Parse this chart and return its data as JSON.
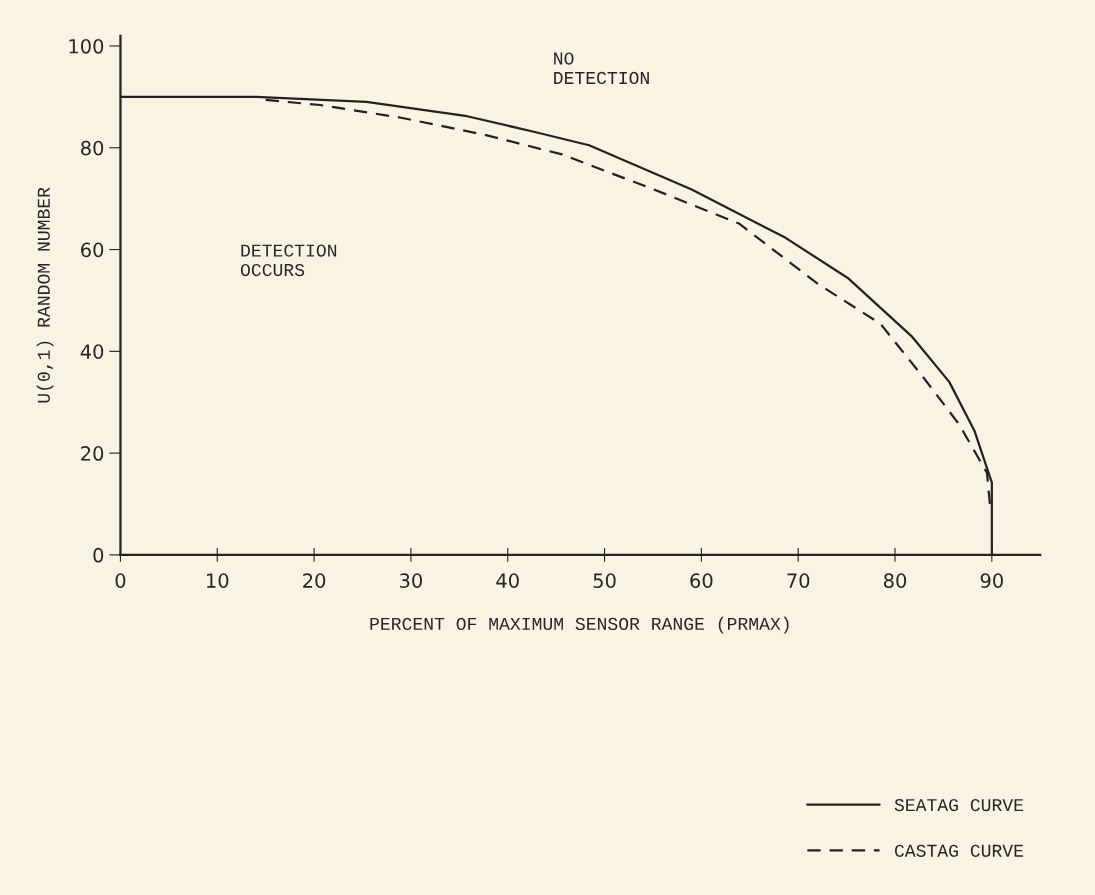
{
  "chart_data": {
    "type": "line",
    "xlabel": "PERCENT OF MAXIMUM SENSOR RANGE (PRMAX)",
    "ylabel": "U(0,1) RANDOM NUMBER",
    "annotations": [
      "NO\nDETECTION",
      "DETECTION\nOCCURS"
    ],
    "xlim": [
      0,
      95
    ],
    "ylim": [
      0,
      102
    ],
    "xticks": [
      0,
      10,
      20,
      30,
      40,
      50,
      60,
      70,
      80,
      90
    ],
    "yticks": [
      0,
      20,
      40,
      60,
      80,
      100
    ],
    "grid": false,
    "legend": "bottom right",
    "marker": "none",
    "series": [
      {
        "name": "SEATAG CURVE",
        "color": "#222222",
        "line_style": "solid",
        "x": [
          0,
          14.0,
          25.4,
          35.8,
          42.8,
          48.4,
          59.0,
          68.7,
          75.2,
          81.7,
          85.6,
          88.2,
          90.0,
          90.0
        ],
        "values": [
          90,
          90,
          89.0,
          86.2,
          83.1,
          80.5,
          71.8,
          62.3,
          54.3,
          43.0,
          34.0,
          24.4,
          14.2,
          0
        ]
      },
      {
        "name": "CASTAG CURVE",
        "color": "#222222",
        "line_style": "dashed",
        "x": [
          15.0,
          20.6,
          29.0,
          37.5,
          45.6,
          55.1,
          63.9,
          72.0,
          78.5,
          83.0,
          86.6,
          89.5,
          89.8
        ],
        "values": [
          89.4,
          88.4,
          85.9,
          82.6,
          78.7,
          71.8,
          65.1,
          53.3,
          45.4,
          34.7,
          25.7,
          16.1,
          10
        ]
      }
    ]
  }
}
